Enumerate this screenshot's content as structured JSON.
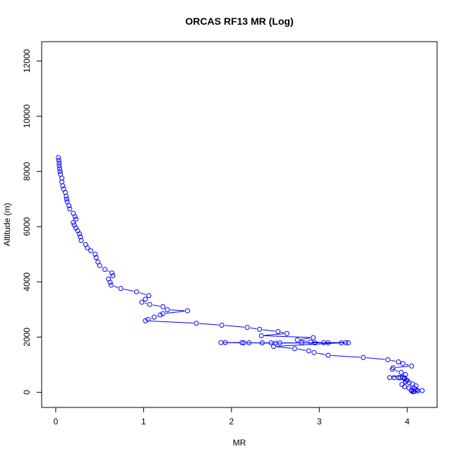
{
  "chart_data": {
    "type": "line",
    "title": "ORCAS RF13 MR (Log)",
    "xlabel": "MR",
    "ylabel": "Altitude (m)",
    "xlim": [
      -0.16,
      4.34
    ],
    "ylim": [
      -550,
      12700
    ],
    "xticks": [
      0,
      1,
      2,
      3,
      4
    ],
    "xtick_labels": [
      "0",
      "1",
      "2",
      "3",
      "4"
    ],
    "yticks": [
      0,
      2000,
      4000,
      6000,
      8000,
      10000,
      12000
    ],
    "ytick_labels": [
      "0",
      "2000",
      "4000",
      "6000",
      "8000",
      "10000",
      "12000"
    ],
    "grid": false,
    "color": "#0000ff",
    "series": [
      {
        "points": [
          [
            0.03,
            8500
          ],
          [
            0.035,
            8400
          ],
          [
            0.04,
            8300
          ],
          [
            0.04,
            8200
          ],
          [
            0.045,
            8100
          ],
          [
            0.05,
            8000
          ],
          [
            0.055,
            7900
          ],
          [
            0.07,
            7760
          ],
          [
            0.07,
            7620
          ],
          [
            0.08,
            7480
          ],
          [
            0.09,
            7360
          ],
          [
            0.11,
            7240
          ],
          [
            0.12,
            7100
          ],
          [
            0.125,
            7000
          ],
          [
            0.13,
            6900
          ],
          [
            0.15,
            6760
          ],
          [
            0.16,
            6640
          ],
          [
            0.2,
            6480
          ],
          [
            0.22,
            6360
          ],
          [
            0.23,
            6270
          ],
          [
            0.2,
            6150
          ],
          [
            0.21,
            6060
          ],
          [
            0.23,
            5950
          ],
          [
            0.25,
            5850
          ],
          [
            0.27,
            5740
          ],
          [
            0.28,
            5630
          ],
          [
            0.29,
            5500
          ],
          [
            0.34,
            5350
          ],
          [
            0.36,
            5230
          ],
          [
            0.4,
            5130
          ],
          [
            0.45,
            5000
          ],
          [
            0.46,
            4880
          ],
          [
            0.48,
            4720
          ],
          [
            0.5,
            4590
          ],
          [
            0.56,
            4450
          ],
          [
            0.64,
            4320
          ],
          [
            0.65,
            4220
          ],
          [
            0.6,
            4100
          ],
          [
            0.62,
            3980
          ],
          [
            0.63,
            3880
          ],
          [
            0.74,
            3760
          ],
          [
            0.92,
            3640
          ],
          [
            1.06,
            3500
          ],
          [
            1.02,
            3370
          ],
          [
            0.98,
            3260
          ],
          [
            1.07,
            3180
          ],
          [
            1.22,
            3100
          ],
          [
            1.27,
            2990
          ],
          [
            1.5,
            2950
          ],
          [
            1.22,
            2850
          ],
          [
            1.19,
            2800
          ],
          [
            1.12,
            2720
          ],
          [
            1.05,
            2640
          ],
          [
            1.02,
            2590
          ],
          [
            1.6,
            2500
          ],
          [
            1.89,
            2430
          ],
          [
            2.18,
            2350
          ],
          [
            2.32,
            2280
          ],
          [
            2.53,
            2200
          ],
          [
            2.63,
            2130
          ],
          [
            2.34,
            2050
          ],
          [
            2.93,
            1980
          ],
          [
            2.75,
            1900
          ],
          [
            2.9,
            1820
          ],
          [
            3.05,
            1800
          ],
          [
            3.33,
            1790
          ],
          [
            3.25,
            1790
          ],
          [
            3.1,
            1790
          ],
          [
            2.8,
            1790
          ],
          [
            2.55,
            1790
          ],
          [
            2.45,
            1790
          ],
          [
            2.35,
            1790
          ],
          [
            2.2,
            1790
          ],
          [
            2.12,
            1800
          ],
          [
            1.93,
            1800
          ],
          [
            1.88,
            1800
          ],
          [
            2.14,
            1790
          ],
          [
            2.5,
            1780
          ],
          [
            2.95,
            1790
          ],
          [
            3.3,
            1800
          ],
          [
            2.48,
            1660
          ],
          [
            2.72,
            1580
          ],
          [
            2.88,
            1500
          ],
          [
            2.94,
            1440
          ],
          [
            3.1,
            1340
          ],
          [
            3.5,
            1260
          ],
          [
            3.78,
            1180
          ],
          [
            3.9,
            1100
          ],
          [
            3.95,
            1040
          ],
          [
            4.05,
            950
          ],
          [
            3.84,
            890
          ],
          [
            3.83,
            830
          ],
          [
            3.93,
            720
          ],
          [
            3.98,
            640
          ],
          [
            3.8,
            530
          ],
          [
            3.85,
            530
          ],
          [
            3.9,
            530
          ],
          [
            3.95,
            530
          ],
          [
            3.92,
            520
          ],
          [
            3.97,
            490
          ],
          [
            4.0,
            420
          ],
          [
            3.98,
            380
          ],
          [
            3.94,
            280
          ],
          [
            3.97,
            200
          ],
          [
            4.02,
            150
          ],
          [
            4.05,
            80
          ],
          [
            4.05,
            40
          ],
          [
            4.08,
            30
          ],
          [
            4.1,
            80
          ],
          [
            4.12,
            50
          ],
          [
            4.07,
            20
          ],
          [
            4.17,
            60
          ],
          [
            4.08,
            150
          ],
          [
            4.1,
            230
          ],
          [
            4.06,
            300
          ],
          [
            4.02,
            350
          ],
          [
            3.99,
            440
          ],
          [
            3.97,
            520
          ]
        ]
      }
    ]
  }
}
